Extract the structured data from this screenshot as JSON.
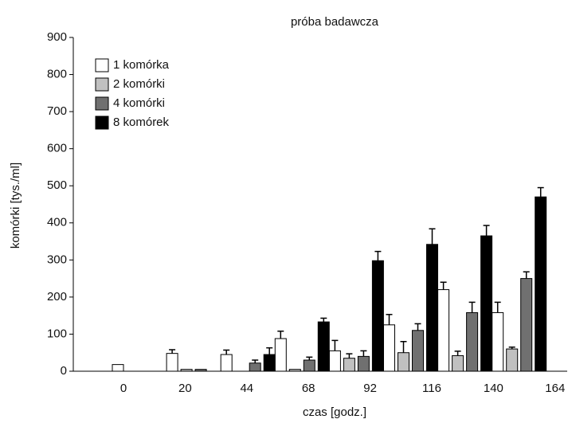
{
  "chart_data": {
    "type": "bar",
    "title": "próba badawcza",
    "x_label": "czas [godz.]",
    "y_label": "komórki [tys./ml]",
    "categories": [
      "0",
      "20",
      "44",
      "68",
      "92",
      "116",
      "140",
      "164"
    ],
    "series": [
      {
        "name": "1 komórka",
        "color": "#ffffff",
        "values": [
          18,
          48,
          45,
          88,
          55,
          125,
          220,
          158
        ],
        "errors": [
          null,
          10,
          12,
          20,
          28,
          28,
          20,
          28
        ]
      },
      {
        "name": "2 komórki",
        "color": "#c0c0c0",
        "values": [
          null,
          5,
          null,
          5,
          35,
          50,
          42,
          60
        ],
        "errors": [
          null,
          null,
          null,
          null,
          12,
          30,
          12,
          5
        ]
      },
      {
        "name": "4 komórki",
        "color": "#707070",
        "values": [
          null,
          5,
          22,
          30,
          40,
          110,
          158,
          250
        ],
        "errors": [
          null,
          null,
          8,
          8,
          15,
          18,
          28,
          18
        ]
      },
      {
        "name": "8 komórek",
        "color": "#000000",
        "values": [
          null,
          null,
          45,
          133,
          298,
          342,
          365,
          470
        ],
        "errors": [
          null,
          null,
          18,
          10,
          25,
          42,
          28,
          25
        ]
      }
    ],
    "ylim": [
      0,
      900
    ],
    "yticks": [
      0,
      100,
      200,
      300,
      400,
      500,
      600,
      700,
      800,
      900
    ],
    "legend": "top-left"
  }
}
